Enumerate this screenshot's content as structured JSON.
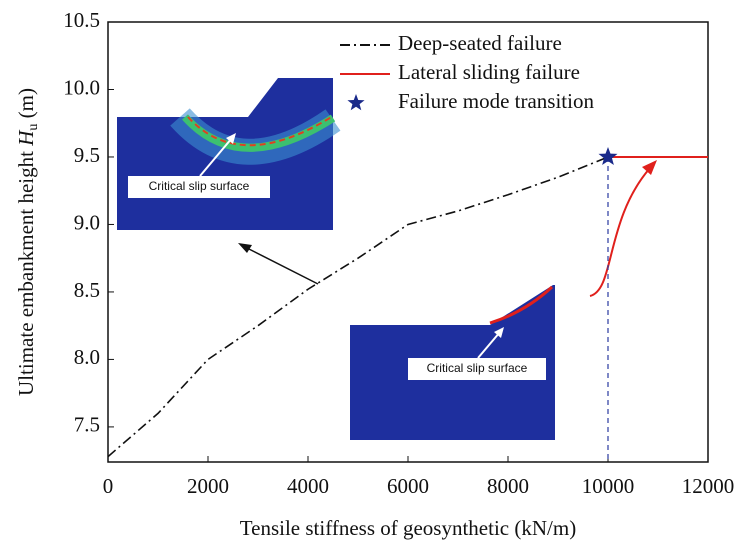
{
  "chart_data": {
    "type": "line",
    "xlabel": "Tensile stiffness of geosynthetic (kN/m)",
    "ylabel": {
      "text": "Ultimate embankment  height ",
      "symbol": "H",
      "subscript": "u",
      "unit": " (m)"
    },
    "xlim": [
      0,
      12000
    ],
    "ylim": [
      7.24,
      10.5
    ],
    "xticks": [
      0,
      2000,
      4000,
      6000,
      8000,
      10000,
      12000
    ],
    "yticks": [
      7.5,
      {
        "value": 8,
        "label": "8.0"
      },
      8.5,
      {
        "value": 9,
        "label": "9.0"
      },
      9.5,
      {
        "value": 10,
        "label": "10.0"
      },
      10.5
    ],
    "series": [
      {
        "name": "Deep-seated  failure",
        "color": "#111111",
        "style": "dashdot",
        "x": [
          0,
          1000,
          2000,
          3000,
          4000,
          5000,
          6000,
          7000,
          8000,
          9000,
          10000
        ],
        "values": [
          7.28,
          7.6,
          8.0,
          8.25,
          8.52,
          8.75,
          9.0,
          9.1,
          9.22,
          9.35,
          9.5
        ]
      },
      {
        "name": "Lateral sliding failure",
        "color": "#e0201c",
        "style": "solid",
        "x": [
          10000,
          12000
        ],
        "values": [
          9.5,
          9.5
        ]
      },
      {
        "name": "Failure mode transition",
        "color": "#1a2a8a",
        "style": "star",
        "x": [
          10000
        ],
        "values": [
          9.5
        ]
      }
    ],
    "annotations": [
      "Critical slip surface",
      "Critical slip surface"
    ]
  }
}
